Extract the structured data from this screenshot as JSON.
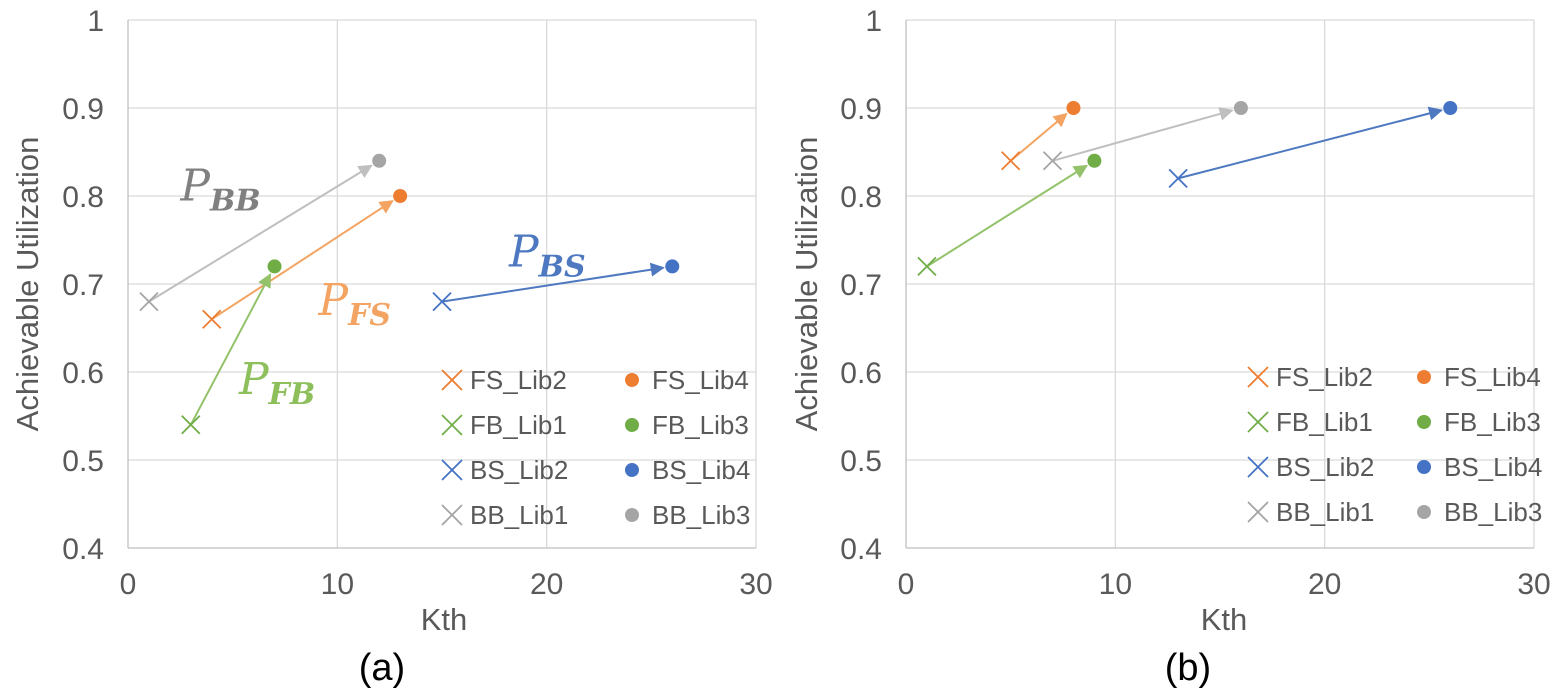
{
  "colors": {
    "FS": "#ED7D31",
    "FB": "#70AD47",
    "BS": "#4472C4",
    "BB": "#A5A5A5",
    "FS_label": "#F4A462",
    "FB_label": "#8DBF5B",
    "BS_label": "#4E79C0",
    "BB_label": "#808080",
    "FS_arrow": "#F4A462",
    "FB_arrow": "#93C26A",
    "BS_arrow": "#4E79C0",
    "BB_arrow": "#BFBFBF"
  },
  "chart_data": [
    {
      "type": "scatter",
      "caption": "(a)",
      "xlabel": "Kth",
      "ylabel": "Achievable Utilization",
      "xlim": [
        0,
        30
      ],
      "ylim": [
        0.4,
        1
      ],
      "xticks": [
        "0",
        "10",
        "20",
        "30"
      ],
      "yticks": [
        "0.4",
        "0.5",
        "0.6",
        "0.7",
        "0.8",
        "0.9",
        "1"
      ],
      "grid": true,
      "legend_position": "bottom-right",
      "series": [
        {
          "name": "FS_Lib2",
          "group": "FS",
          "marker": "cross",
          "x": 4,
          "y": 0.66
        },
        {
          "name": "FS_Lib4",
          "group": "FS",
          "marker": "circle",
          "x": 13,
          "y": 0.8
        },
        {
          "name": "FB_Lib1",
          "group": "FB",
          "marker": "cross",
          "x": 3,
          "y": 0.54
        },
        {
          "name": "FB_Lib3",
          "group": "FB",
          "marker": "circle",
          "x": 7,
          "y": 0.72
        },
        {
          "name": "BS_Lib2",
          "group": "BS",
          "marker": "cross",
          "x": 15,
          "y": 0.68
        },
        {
          "name": "BS_Lib4",
          "group": "BS",
          "marker": "circle",
          "x": 26,
          "y": 0.72
        },
        {
          "name": "BB_Lib1",
          "group": "BB",
          "marker": "cross",
          "x": 1,
          "y": 0.68
        },
        {
          "name": "BB_Lib3",
          "group": "BB",
          "marker": "circle",
          "x": 12,
          "y": 0.84
        }
      ],
      "arrows": [
        {
          "group": "FS",
          "from": [
            4,
            0.66
          ],
          "to": [
            13,
            0.8
          ]
        },
        {
          "group": "FB",
          "from": [
            3,
            0.54
          ],
          "to": [
            7,
            0.72
          ]
        },
        {
          "group": "BS",
          "from": [
            15,
            0.68
          ],
          "to": [
            26,
            0.72
          ]
        },
        {
          "group": "BB",
          "from": [
            1,
            0.68
          ],
          "to": [
            12,
            0.84
          ]
        }
      ],
      "annotations": [
        {
          "group": "BB",
          "main": "P",
          "sub": "BB",
          "x": 2.5,
          "y": 0.795
        },
        {
          "group": "FS",
          "main": "P",
          "sub": "FS",
          "x": 9.1,
          "y": 0.665
        },
        {
          "group": "BS",
          "main": "P",
          "sub": "BS",
          "x": 18.2,
          "y": 0.72
        },
        {
          "group": "FB",
          "main": "P",
          "sub": "FB",
          "x": 5.3,
          "y": 0.575
        }
      ]
    },
    {
      "type": "scatter",
      "caption": "(b)",
      "xlabel": "Kth",
      "ylabel": "Achievable Utilization",
      "xlim": [
        0,
        30
      ],
      "ylim": [
        0.4,
        1
      ],
      "xticks": [
        "0",
        "10",
        "20",
        "30"
      ],
      "yticks": [
        "0.4",
        "0.5",
        "0.6",
        "0.7",
        "0.8",
        "0.9",
        "1"
      ],
      "grid": true,
      "legend_position": "bottom-right",
      "series": [
        {
          "name": "FS_Lib2",
          "group": "FS",
          "marker": "cross",
          "x": 5,
          "y": 0.84
        },
        {
          "name": "FS_Lib4",
          "group": "FS",
          "marker": "circle",
          "x": 8,
          "y": 0.9
        },
        {
          "name": "FB_Lib1",
          "group": "FB",
          "marker": "cross",
          "x": 1,
          "y": 0.72
        },
        {
          "name": "FB_Lib3",
          "group": "FB",
          "marker": "circle",
          "x": 9,
          "y": 0.84
        },
        {
          "name": "BS_Lib2",
          "group": "BS",
          "marker": "cross",
          "x": 13,
          "y": 0.82
        },
        {
          "name": "BS_Lib4",
          "group": "BS",
          "marker": "circle",
          "x": 26,
          "y": 0.9
        },
        {
          "name": "BB_Lib1",
          "group": "BB",
          "marker": "cross",
          "x": 7,
          "y": 0.84
        },
        {
          "name": "BB_Lib3",
          "group": "BB",
          "marker": "circle",
          "x": 16,
          "y": 0.9
        }
      ],
      "arrows": [
        {
          "group": "FS",
          "from": [
            5,
            0.84
          ],
          "to": [
            8,
            0.9
          ]
        },
        {
          "group": "FB",
          "from": [
            1,
            0.72
          ],
          "to": [
            9,
            0.84
          ]
        },
        {
          "group": "BS",
          "from": [
            13,
            0.82
          ],
          "to": [
            26,
            0.9
          ]
        },
        {
          "group": "BB",
          "from": [
            7,
            0.84
          ],
          "to": [
            16,
            0.9
          ]
        }
      ],
      "annotations": []
    }
  ]
}
